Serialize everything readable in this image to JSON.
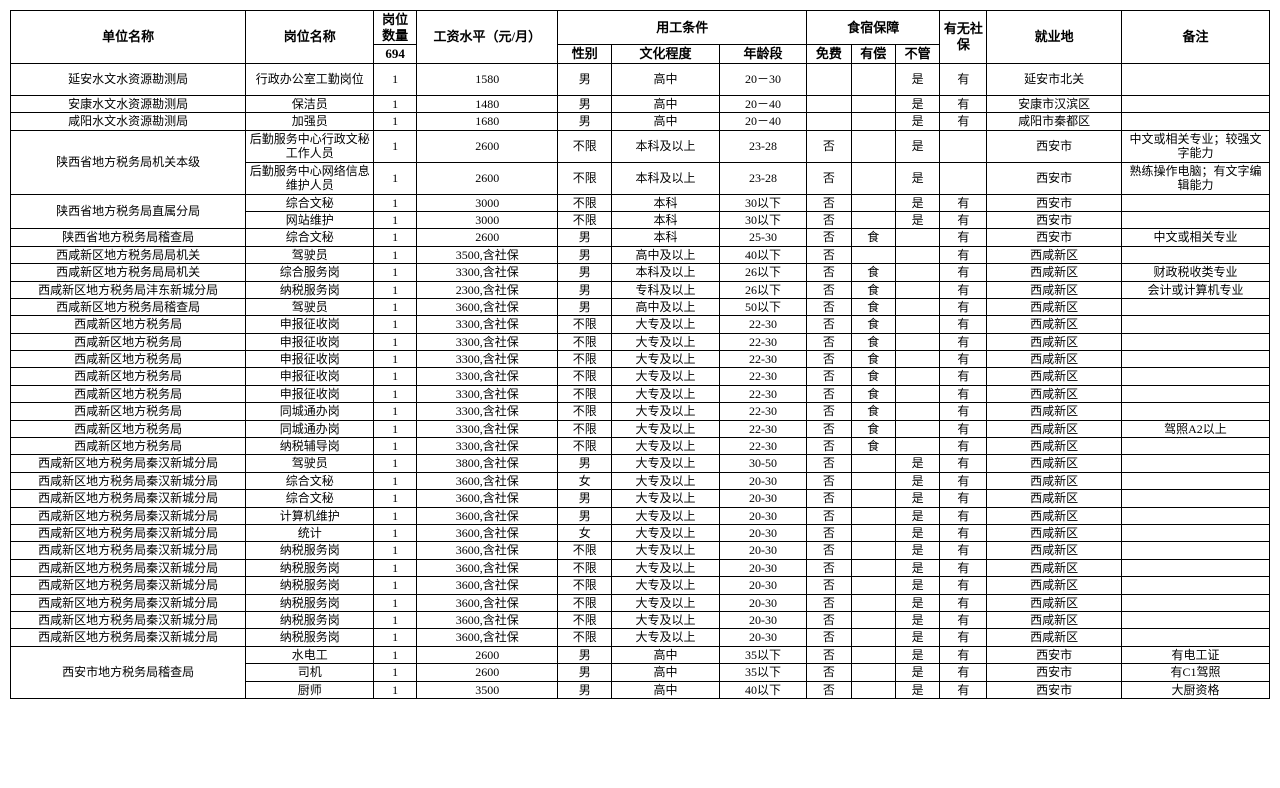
{
  "header": {
    "unit": "单位名称",
    "position": "岗位名称",
    "qty_group": "岗位数量",
    "qty_total": "694",
    "salary": "工资水平（元/月）",
    "cond_group": "用工条件",
    "gender": "性别",
    "edu": "文化程度",
    "age": "年龄段",
    "lodging_group": "食宿保障",
    "free": "免费",
    "paid": "有偿",
    "none": "不管",
    "insurance": "有无社保",
    "location": "就业地",
    "remark": "备注"
  },
  "col_widths_pct": [
    17.5,
    9.5,
    3.2,
    10.5,
    4.0,
    8.0,
    6.5,
    3.3,
    3.3,
    3.3,
    3.5,
    10.0,
    11.0
  ],
  "rows": [
    {
      "unit": "延安水文水资源勘测局",
      "unit_span": 1,
      "pos": "行政办公室工勤岗位",
      "qty": "1",
      "salary": "1580",
      "gender": "男",
      "edu": "高中",
      "age": "20－30",
      "free": "",
      "paid": "",
      "none": "是",
      "ins": "有",
      "loc": "延安市北关",
      "rem": "",
      "tall": true
    },
    {
      "unit": "安康水文水资源勘测局",
      "unit_span": 1,
      "pos": "保洁员",
      "qty": "1",
      "salary": "1480",
      "gender": "男",
      "edu": "高中",
      "age": "20－40",
      "free": "",
      "paid": "",
      "none": "是",
      "ins": "有",
      "loc": "安康市汉滨区",
      "rem": ""
    },
    {
      "unit": "咸阳水文水资源勘测局",
      "unit_span": 1,
      "pos": "加强员",
      "qty": "1",
      "salary": "1680",
      "gender": "男",
      "edu": "高中",
      "age": "20－40",
      "free": "",
      "paid": "",
      "none": "是",
      "ins": "有",
      "loc": "咸阳市秦都区",
      "rem": ""
    },
    {
      "unit": "陕西省地方税务局机关本级",
      "unit_span": 2,
      "pos": "后勤服务中心行政文秘工作人员",
      "qty": "1",
      "salary": "2600",
      "gender": "不限",
      "edu": "本科及以上",
      "age": "23-28",
      "free": "否",
      "paid": "",
      "none": "是",
      "ins": "",
      "loc": "西安市",
      "rem": "中文或相关专业；较强文字能力",
      "tall": true
    },
    {
      "pos": "后勤服务中心网络信息维护人员",
      "qty": "1",
      "salary": "2600",
      "gender": "不限",
      "edu": "本科及以上",
      "age": "23-28",
      "free": "否",
      "paid": "",
      "none": "是",
      "ins": "",
      "loc": "西安市",
      "rem": "熟练操作电脑；有文字编辑能力",
      "tall": true
    },
    {
      "unit": "陕西省地方税务局直属分局",
      "unit_span": 2,
      "pos": "综合文秘",
      "qty": "1",
      "salary": "3000",
      "gender": "不限",
      "edu": "本科",
      "age": "30以下",
      "free": "否",
      "paid": "",
      "none": "是",
      "ins": "有",
      "loc": "西安市",
      "rem": ""
    },
    {
      "pos": "网站维护",
      "qty": "1",
      "salary": "3000",
      "gender": "不限",
      "edu": "本科",
      "age": "30以下",
      "free": "否",
      "paid": "",
      "none": "是",
      "ins": "有",
      "loc": "西安市",
      "rem": ""
    },
    {
      "unit": "陕西省地方税务局稽查局",
      "unit_span": 1,
      "pos": "综合文秘",
      "qty": "1",
      "salary": "2600",
      "gender": "男",
      "edu": "本科",
      "age": "25-30",
      "free": "否",
      "paid": "食",
      "none": "",
      "ins": "有",
      "loc": "西安市",
      "rem": "中文或相关专业"
    },
    {
      "unit": "西咸新区地方税务局局机关",
      "unit_span": 1,
      "pos": "驾驶员",
      "qty": "1",
      "salary": "3500,含社保",
      "gender": "男",
      "edu": "高中及以上",
      "age": "40以下",
      "free": "否",
      "paid": "",
      "none": "",
      "ins": "有",
      "loc": "西咸新区",
      "rem": ""
    },
    {
      "unit": "西咸新区地方税务局局机关",
      "unit_span": 1,
      "pos": "综合服务岗",
      "qty": "1",
      "salary": "3300,含社保",
      "gender": "男",
      "edu": "本科及以上",
      "age": "26以下",
      "free": "否",
      "paid": "食",
      "none": "",
      "ins": "有",
      "loc": "西咸新区",
      "rem": "财政税收类专业"
    },
    {
      "unit": "西咸新区地方税务局沣东新城分局",
      "unit_span": 1,
      "pos": "纳税服务岗",
      "qty": "1",
      "salary": "2300,含社保",
      "gender": "男",
      "edu": "专科及以上",
      "age": "26以下",
      "free": "否",
      "paid": "食",
      "none": "",
      "ins": "有",
      "loc": "西咸新区",
      "rem": "会计或计算机专业"
    },
    {
      "unit": "西咸新区地方税务局稽查局",
      "unit_span": 1,
      "pos": "驾驶员",
      "qty": "1",
      "salary": "3600,含社保",
      "gender": "男",
      "edu": "高中及以上",
      "age": "50以下",
      "free": "否",
      "paid": "食",
      "none": "",
      "ins": "有",
      "loc": "西咸新区",
      "rem": ""
    },
    {
      "unit": "西咸新区地方税务局",
      "unit_span": 1,
      "pos": "申报征收岗",
      "qty": "1",
      "salary": "3300,含社保",
      "gender": "不限",
      "edu": "大专及以上",
      "age": "22-30",
      "free": "否",
      "paid": "食",
      "none": "",
      "ins": "有",
      "loc": "西咸新区",
      "rem": ""
    },
    {
      "unit": "西咸新区地方税务局",
      "unit_span": 1,
      "pos": "申报征收岗",
      "qty": "1",
      "salary": "3300,含社保",
      "gender": "不限",
      "edu": "大专及以上",
      "age": "22-30",
      "free": "否",
      "paid": "食",
      "none": "",
      "ins": "有",
      "loc": "西咸新区",
      "rem": ""
    },
    {
      "unit": "西咸新区地方税务局",
      "unit_span": 1,
      "pos": "申报征收岗",
      "qty": "1",
      "salary": "3300,含社保",
      "gender": "不限",
      "edu": "大专及以上",
      "age": "22-30",
      "free": "否",
      "paid": "食",
      "none": "",
      "ins": "有",
      "loc": "西咸新区",
      "rem": ""
    },
    {
      "unit": "西咸新区地方税务局",
      "unit_span": 1,
      "pos": "申报征收岗",
      "qty": "1",
      "salary": "3300,含社保",
      "gender": "不限",
      "edu": "大专及以上",
      "age": "22-30",
      "free": "否",
      "paid": "食",
      "none": "",
      "ins": "有",
      "loc": "西咸新区",
      "rem": ""
    },
    {
      "unit": "西咸新区地方税务局",
      "unit_span": 1,
      "pos": "申报征收岗",
      "qty": "1",
      "salary": "3300,含社保",
      "gender": "不限",
      "edu": "大专及以上",
      "age": "22-30",
      "free": "否",
      "paid": "食",
      "none": "",
      "ins": "有",
      "loc": "西咸新区",
      "rem": ""
    },
    {
      "unit": "西咸新区地方税务局",
      "unit_span": 1,
      "pos": "同城通办岗",
      "qty": "1",
      "salary": "3300,含社保",
      "gender": "不限",
      "edu": "大专及以上",
      "age": "22-30",
      "free": "否",
      "paid": "食",
      "none": "",
      "ins": "有",
      "loc": "西咸新区",
      "rem": ""
    },
    {
      "unit": "西咸新区地方税务局",
      "unit_span": 1,
      "pos": "同城通办岗",
      "qty": "1",
      "salary": "3300,含社保",
      "gender": "不限",
      "edu": "大专及以上",
      "age": "22-30",
      "free": "否",
      "paid": "食",
      "none": "",
      "ins": "有",
      "loc": "西咸新区",
      "rem": "驾照A2以上"
    },
    {
      "unit": "西咸新区地方税务局",
      "unit_span": 1,
      "pos": "纳税辅导岗",
      "qty": "1",
      "salary": "3300,含社保",
      "gender": "不限",
      "edu": "大专及以上",
      "age": "22-30",
      "free": "否",
      "paid": "食",
      "none": "",
      "ins": "有",
      "loc": "西咸新区",
      "rem": ""
    },
    {
      "unit": "西咸新区地方税务局秦汉新城分局",
      "unit_span": 1,
      "pos": "驾驶员",
      "qty": "1",
      "salary": "3800,含社保",
      "gender": "男",
      "edu": "大专及以上",
      "age": "30-50",
      "free": "否",
      "paid": "",
      "none": "是",
      "ins": "有",
      "loc": "西咸新区",
      "rem": ""
    },
    {
      "unit": "西咸新区地方税务局秦汉新城分局",
      "unit_span": 1,
      "pos": "综合文秘",
      "qty": "1",
      "salary": "3600,含社保",
      "gender": "女",
      "edu": "大专及以上",
      "age": "20-30",
      "free": "否",
      "paid": "",
      "none": "是",
      "ins": "有",
      "loc": "西咸新区",
      "rem": ""
    },
    {
      "unit": "西咸新区地方税务局秦汉新城分局",
      "unit_span": 1,
      "pos": "综合文秘",
      "qty": "1",
      "salary": "3600,含社保",
      "gender": "男",
      "edu": "大专及以上",
      "age": "20-30",
      "free": "否",
      "paid": "",
      "none": "是",
      "ins": "有",
      "loc": "西咸新区",
      "rem": ""
    },
    {
      "unit": "西咸新区地方税务局秦汉新城分局",
      "unit_span": 1,
      "pos": "计算机维护",
      "qty": "1",
      "salary": "3600,含社保",
      "gender": "男",
      "edu": "大专及以上",
      "age": "20-30",
      "free": "否",
      "paid": "",
      "none": "是",
      "ins": "有",
      "loc": "西咸新区",
      "rem": ""
    },
    {
      "unit": "西咸新区地方税务局秦汉新城分局",
      "unit_span": 1,
      "pos": "统计",
      "qty": "1",
      "salary": "3600,含社保",
      "gender": "女",
      "edu": "大专及以上",
      "age": "20-30",
      "free": "否",
      "paid": "",
      "none": "是",
      "ins": "有",
      "loc": "西咸新区",
      "rem": ""
    },
    {
      "unit": "西咸新区地方税务局秦汉新城分局",
      "unit_span": 1,
      "pos": "纳税服务岗",
      "qty": "1",
      "salary": "3600,含社保",
      "gender": "不限",
      "edu": "大专及以上",
      "age": "20-30",
      "free": "否",
      "paid": "",
      "none": "是",
      "ins": "有",
      "loc": "西咸新区",
      "rem": ""
    },
    {
      "unit": "西咸新区地方税务局秦汉新城分局",
      "unit_span": 1,
      "pos": "纳税服务岗",
      "qty": "1",
      "salary": "3600,含社保",
      "gender": "不限",
      "edu": "大专及以上",
      "age": "20-30",
      "free": "否",
      "paid": "",
      "none": "是",
      "ins": "有",
      "loc": "西咸新区",
      "rem": ""
    },
    {
      "unit": "西咸新区地方税务局秦汉新城分局",
      "unit_span": 1,
      "pos": "纳税服务岗",
      "qty": "1",
      "salary": "3600,含社保",
      "gender": "不限",
      "edu": "大专及以上",
      "age": "20-30",
      "free": "否",
      "paid": "",
      "none": "是",
      "ins": "有",
      "loc": "西咸新区",
      "rem": ""
    },
    {
      "unit": "西咸新区地方税务局秦汉新城分局",
      "unit_span": 1,
      "pos": "纳税服务岗",
      "qty": "1",
      "salary": "3600,含社保",
      "gender": "不限",
      "edu": "大专及以上",
      "age": "20-30",
      "free": "否",
      "paid": "",
      "none": "是",
      "ins": "有",
      "loc": "西咸新区",
      "rem": ""
    },
    {
      "unit": "西咸新区地方税务局秦汉新城分局",
      "unit_span": 1,
      "pos": "纳税服务岗",
      "qty": "1",
      "salary": "3600,含社保",
      "gender": "不限",
      "edu": "大专及以上",
      "age": "20-30",
      "free": "否",
      "paid": "",
      "none": "是",
      "ins": "有",
      "loc": "西咸新区",
      "rem": ""
    },
    {
      "unit": "西咸新区地方税务局秦汉新城分局",
      "unit_span": 1,
      "pos": "纳税服务岗",
      "qty": "1",
      "salary": "3600,含社保",
      "gender": "不限",
      "edu": "大专及以上",
      "age": "20-30",
      "free": "否",
      "paid": "",
      "none": "是",
      "ins": "有",
      "loc": "西咸新区",
      "rem": ""
    },
    {
      "unit": "西安市地方税务局稽查局",
      "unit_span": 3,
      "pos": "水电工",
      "qty": "1",
      "salary": "2600",
      "gender": "男",
      "edu": "高中",
      "age": "35以下",
      "free": "否",
      "paid": "",
      "none": "是",
      "ins": "有",
      "loc": "西安市",
      "rem": "有电工证"
    },
    {
      "pos": "司机",
      "qty": "1",
      "salary": "2600",
      "gender": "男",
      "edu": "高中",
      "age": "35以下",
      "free": "否",
      "paid": "",
      "none": "是",
      "ins": "有",
      "loc": "西安市",
      "rem": "有C1驾照"
    },
    {
      "pos": "厨师",
      "qty": "1",
      "salary": "3500",
      "gender": "男",
      "edu": "高中",
      "age": "40以下",
      "free": "否",
      "paid": "",
      "none": "是",
      "ins": "有",
      "loc": "西安市",
      "rem": "大厨资格"
    }
  ]
}
